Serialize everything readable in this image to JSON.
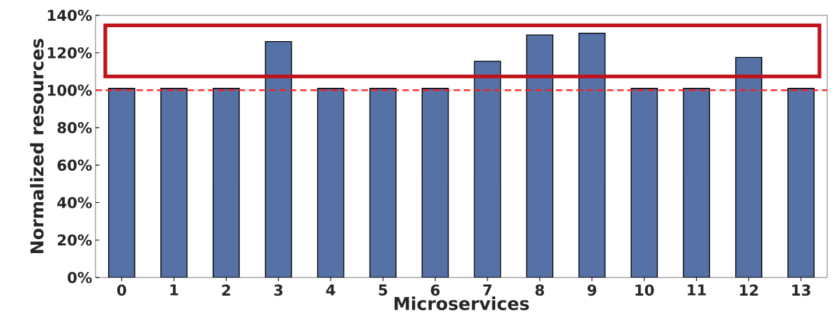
{
  "chart_data": {
    "type": "bar",
    "xlabel": "Microservices",
    "ylabel": "Normalized resources",
    "categories": [
      "0",
      "1",
      "2",
      "3",
      "4",
      "5",
      "6",
      "7",
      "8",
      "9",
      "10",
      "11",
      "12",
      "13"
    ],
    "values": [
      101,
      101,
      101,
      126,
      101,
      101,
      101,
      115.5,
      129.5,
      130.5,
      101,
      101,
      117.5,
      101
    ],
    "color": "#5571a6",
    "ylim": [
      0,
      140
    ],
    "yticks": [
      {
        "value": 0,
        "label": "0%"
      },
      {
        "value": 20,
        "label": "20%"
      },
      {
        "value": 40,
        "label": "40%"
      },
      {
        "value": 60,
        "label": "60%"
      },
      {
        "value": 80,
        "label": "80%"
      },
      {
        "value": 100,
        "label": "100%"
      },
      {
        "value": 120,
        "label": "120%"
      },
      {
        "value": 140,
        "label": "140%"
      }
    ],
    "ref_lines": [
      {
        "axis": "y",
        "value": 100,
        "color": "#ff1a1a",
        "line_style": "dashed"
      }
    ]
  }
}
